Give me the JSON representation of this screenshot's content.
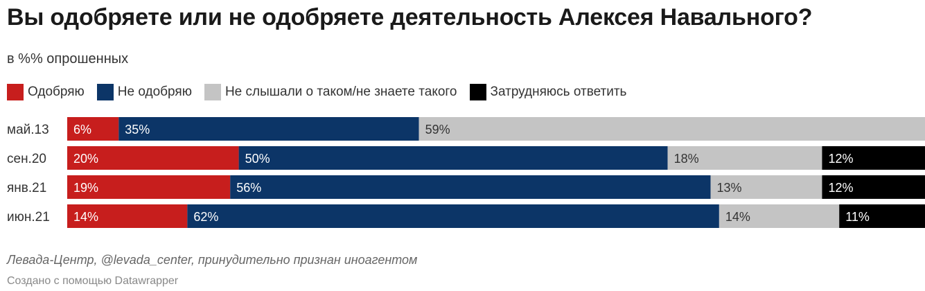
{
  "title": "Вы одобряете или не одобряете деятельность Алексея Навального?",
  "subtitle": "в %% опрошенных",
  "legend": [
    {
      "label": "Одобряю",
      "color": "#c71e1d"
    },
    {
      "label": "Не одобряю",
      "color": "#0c3567"
    },
    {
      "label": "Не слышали о таком/не знаете такого",
      "color": "#c4c4c4"
    },
    {
      "label": "Затрудняюсь ответить",
      "color": "#000000"
    }
  ],
  "chart_data": {
    "type": "bar",
    "orientation": "horizontal",
    "stacked": true,
    "categories": [
      "май.13",
      "сен.20",
      "янв.21",
      "июн.21"
    ],
    "series": [
      {
        "name": "Одобряю",
        "color": "#c71e1d",
        "label_color": "#ffffff",
        "values": [
          6,
          20,
          19,
          14
        ]
      },
      {
        "name": "Не одобряю",
        "color": "#0c3567",
        "label_color": "#ffffff",
        "values": [
          35,
          50,
          56,
          62
        ]
      },
      {
        "name": "Не слышали о таком/не знаете такого",
        "color": "#c4c4c4",
        "label_color": "#333333",
        "values": [
          59,
          18,
          13,
          14
        ]
      },
      {
        "name": "Затрудняюсь ответить",
        "color": "#000000",
        "label_color": "#ffffff",
        "values": [
          null,
          12,
          12,
          11
        ]
      }
    ],
    "value_suffix": "%",
    "xlim": [
      0,
      100
    ],
    "grid": false,
    "legend_position": "top-left"
  },
  "source": "Левада-Центр, @levada_center, принудительно признан иноагентом",
  "credit": "Создано с помощью Datawrapper"
}
